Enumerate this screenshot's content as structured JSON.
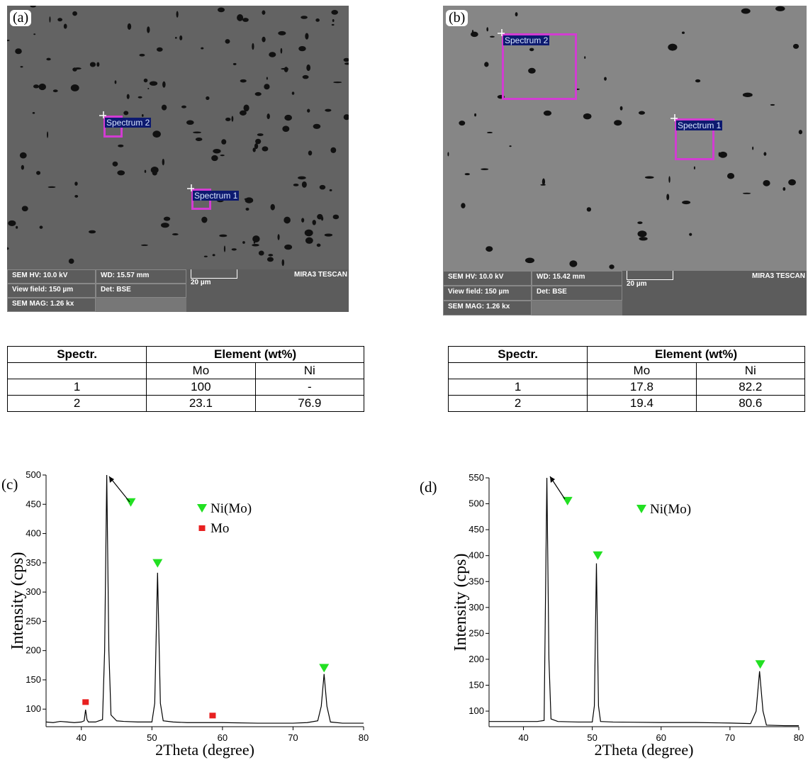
{
  "images": [
    {
      "label": "(a)",
      "spectra": [
        "Spectrum 2",
        "Spectrum 1"
      ],
      "info": {
        "hv": "SEM HV: 10.0 kV",
        "wd": "WD: 15.57 mm",
        "brand": "MIRA3 TESCAN",
        "field": "View field: 150 µm",
        "det": "Det: BSE",
        "scale": "20 µm",
        "mag": "SEM MAG: 1.26 kx"
      }
    },
    {
      "label": "(b)",
      "spectra": [
        "Spectrum 2",
        "Spectrum 1"
      ],
      "info": {
        "hv": "SEM HV: 10.0 kV",
        "wd": "WD: 15.42 mm",
        "brand": "MIRA3 TESCAN",
        "field": "View field: 150 µm",
        "det": "Det: BSE",
        "scale": "20 µm",
        "mag": "SEM MAG: 1.26 kx"
      }
    }
  ],
  "tables": [
    {
      "header": [
        "Spectr.",
        "Element (wt%)"
      ],
      "subheader": [
        "Mo",
        "Ni"
      ],
      "rows": [
        [
          "1",
          "100",
          "-"
        ],
        [
          "2",
          "23.1",
          "76.9"
        ]
      ]
    },
    {
      "header": [
        "Spectr.",
        "Element (wt%)"
      ],
      "subheader": [
        "Mo",
        "Ni"
      ],
      "rows": [
        [
          "1",
          "17.8",
          "82.2"
        ],
        [
          "2",
          "19.4",
          "80.6"
        ]
      ]
    }
  ],
  "chart_data": [
    {
      "type": "line",
      "label": "(c)",
      "xlabel": "2Theta (degree)",
      "ylabel": "Intensity (cps)",
      "color": "#000000",
      "xlim": [
        35,
        80
      ],
      "ylim": [
        70,
        500
      ],
      "xticks": [
        40,
        50,
        60,
        70,
        80
      ],
      "yticks": [
        100,
        150,
        200,
        250,
        300,
        350,
        400,
        450,
        500
      ],
      "x": [
        35,
        36,
        37,
        38,
        39,
        40,
        40.4,
        40.6,
        40.8,
        41,
        42,
        43,
        43.3,
        43.6,
        43.9,
        44.2,
        45,
        46,
        48,
        50,
        50.4,
        50.8,
        51.2,
        51.6,
        53,
        55,
        58,
        60,
        65,
        70,
        72,
        73.5,
        74,
        74.4,
        74.8,
        75.3,
        77,
        80
      ],
      "values": [
        78,
        77,
        79,
        78,
        77,
        78,
        80,
        99,
        82,
        78,
        78,
        82,
        200,
        500,
        200,
        90,
        80,
        79,
        78,
        78,
        110,
        333,
        110,
        80,
        78,
        77,
        77,
        77,
        76,
        76,
        77,
        80,
        105,
        160,
        105,
        78,
        76,
        76
      ],
      "series": [
        {
          "name": "Ni(Mo)",
          "color": "#22e022",
          "marker": "triangle-down",
          "x": [
            47,
            50.8,
            74.4
          ],
          "values": [
            453,
            349,
            170
          ]
        },
        {
          "name": "Mo",
          "color": "#e82020",
          "marker": "square",
          "x": [
            40.6,
            58.6
          ],
          "values": [
            112,
            89
          ]
        }
      ]
    },
    {
      "type": "line",
      "label": "(d)",
      "xlabel": "2Theta (degree)",
      "ylabel": "Intensity (cps)",
      "color": "#000000",
      "xlim": [
        35,
        80
      ],
      "ylim": [
        70,
        550
      ],
      "xticks": [
        40,
        50,
        60,
        70,
        80
      ],
      "yticks": [
        100,
        150,
        200,
        250,
        300,
        350,
        400,
        450,
        500,
        550
      ],
      "x": [
        35,
        37,
        40,
        42,
        43,
        43.1,
        43.4,
        43.7,
        44,
        45,
        48,
        50,
        50.3,
        50.6,
        50.9,
        51.2,
        53,
        60,
        65,
        70,
        73,
        73.8,
        74.3,
        74.8,
        75.3,
        78,
        80
      ],
      "values": [
        80,
        80,
        80,
        80,
        82,
        200,
        550,
        200,
        85,
        80,
        79,
        79,
        110,
        385,
        110,
        80,
        79,
        78,
        78,
        77,
        76,
        100,
        177,
        100,
        73,
        72,
        72
      ],
      "series": [
        {
          "name": "Ni(Mo)",
          "color": "#22e022",
          "marker": "triangle-down",
          "x": [
            46.4,
            50.8,
            74.4
          ],
          "values": [
            505,
            400,
            190
          ]
        }
      ]
    }
  ]
}
